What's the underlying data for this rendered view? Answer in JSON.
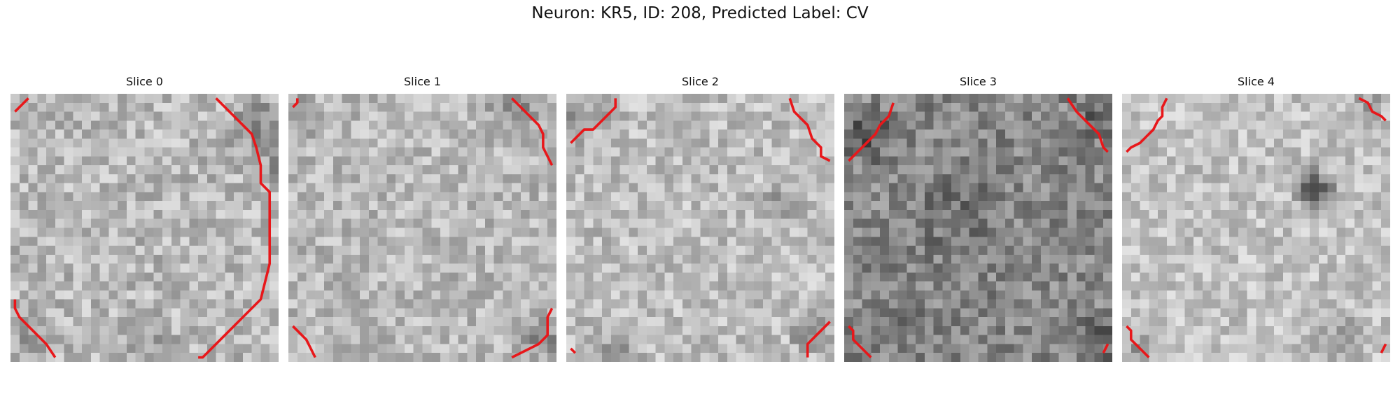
{
  "figure": {
    "title": "Neuron: KR5, ID: 208, Predicted Label: CV"
  },
  "colors": {
    "contour": "#e8171a",
    "colormap": "gray"
  },
  "panels": [
    {
      "title": "Slice 0",
      "base_gray": 185,
      "contrast": 38
    },
    {
      "title": "Slice 1",
      "base_gray": 185,
      "contrast": 36
    },
    {
      "title": "Slice 2",
      "base_gray": 190,
      "contrast": 36
    },
    {
      "title": "Slice 3",
      "base_gray": 135,
      "contrast": 40
    },
    {
      "title": "Slice 4",
      "base_gray": 195,
      "contrast": 34
    }
  ]
}
